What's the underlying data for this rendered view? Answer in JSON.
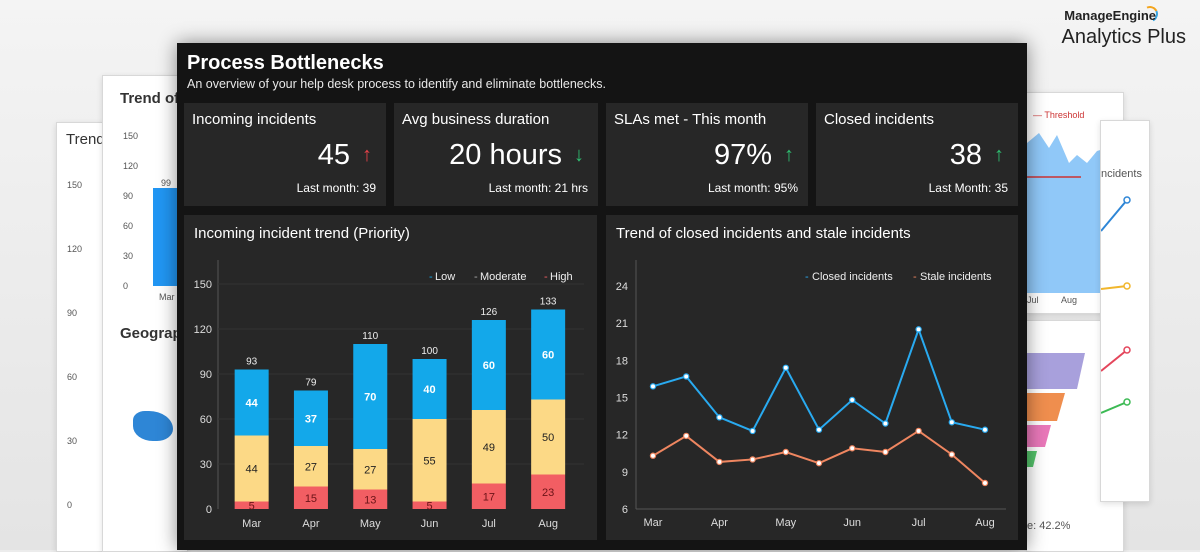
{
  "brand": {
    "line1": "ManageEngine",
    "line2": "Analytics Plus"
  },
  "background": {
    "left_card_title": "Trend",
    "mid_card_title": "Trend of",
    "geo_card_title": "Geograp",
    "right_card_legend": "Threshold",
    "right_card_label": "ncidents",
    "right_card_ticks": [
      "Jul",
      "Aug"
    ],
    "funnel_label": "e: 42.2%",
    "left_ticks": [
      "150",
      "120",
      "90",
      "60",
      "30",
      "0"
    ],
    "mid_ticks": [
      "150",
      "120",
      "90",
      "60",
      "30",
      "0"
    ],
    "mid_bar_label": "99",
    "mid_month": "Mar"
  },
  "dashboard": {
    "title": "Process Bottlenecks",
    "subtitle": "An overview of your help desk process to identify and eliminate bottlenecks."
  },
  "kpis": [
    {
      "title": "Incoming incidents",
      "value": "45",
      "arrow": "↑",
      "arrow_color": "#e8424a",
      "last": "Last month: 39"
    },
    {
      "title": "Avg business duration",
      "value": "20 hours",
      "arrow": "↓",
      "arrow_color": "#2fbf71",
      "last": "Last month: 21 hrs"
    },
    {
      "title": "SLAs met - This month",
      "value": "97%",
      "arrow": "↑",
      "arrow_color": "#2fbf71",
      "last": "Last month: 95%"
    },
    {
      "title": "Closed incidents",
      "value": "38",
      "arrow": "↑",
      "arrow_color": "#2fbf71",
      "last": "Last Month: 35"
    }
  ],
  "colors": {
    "low": "#13a8ea",
    "moderate": "#fcd986",
    "high": "#f25e63",
    "closed": "#29aaf0",
    "stale": "#ef8660"
  },
  "chart_data": [
    {
      "type": "bar",
      "title": "Incoming incident trend (Priority)",
      "stacked": true,
      "categories": [
        "Mar",
        "Apr",
        "May",
        "Jun",
        "Jul",
        "Aug"
      ],
      "series": [
        {
          "name": "High",
          "values": [
            5,
            15,
            13,
            5,
            17,
            23
          ]
        },
        {
          "name": "Moderate",
          "values": [
            44,
            27,
            27,
            55,
            49,
            50
          ]
        },
        {
          "name": "Low",
          "values": [
            44,
            37,
            70,
            40,
            60,
            60
          ]
        }
      ],
      "totals": [
        93,
        79,
        110,
        100,
        126,
        133
      ],
      "ylim": [
        0,
        150
      ],
      "yticks": [
        "150",
        "120",
        "90",
        "60",
        "30",
        "0"
      ],
      "legend": [
        "Low",
        "Moderate",
        "High"
      ],
      "legend_position": "top-right",
      "xlabel": "",
      "ylabel": ""
    },
    {
      "type": "line",
      "title": "Trend of closed incidents and stale incidents",
      "x": [
        "Mar",
        "",
        "Apr",
        "",
        "May",
        "",
        "Jun",
        "",
        "Jul",
        "",
        "Aug"
      ],
      "xtick_labels": [
        "Mar",
        "Apr",
        "May",
        "Jun",
        "Jul",
        "Aug"
      ],
      "series": [
        {
          "name": "Closed incidents",
          "values": [
            15.9,
            16.7,
            13.4,
            12.3,
            17.4,
            12.4,
            14.8,
            12.9,
            20.5,
            13.0,
            12.4
          ]
        },
        {
          "name": "Stale incidents",
          "values": [
            10.3,
            11.9,
            9.8,
            10.0,
            10.6,
            9.7,
            10.9,
            10.6,
            12.3,
            10.4,
            8.1
          ]
        }
      ],
      "ylim": [
        6,
        24
      ],
      "yticks": [
        "24",
        "21",
        "18",
        "15",
        "12",
        "9",
        "6"
      ],
      "legend_position": "top-right",
      "xlabel": "",
      "ylabel": ""
    }
  ]
}
